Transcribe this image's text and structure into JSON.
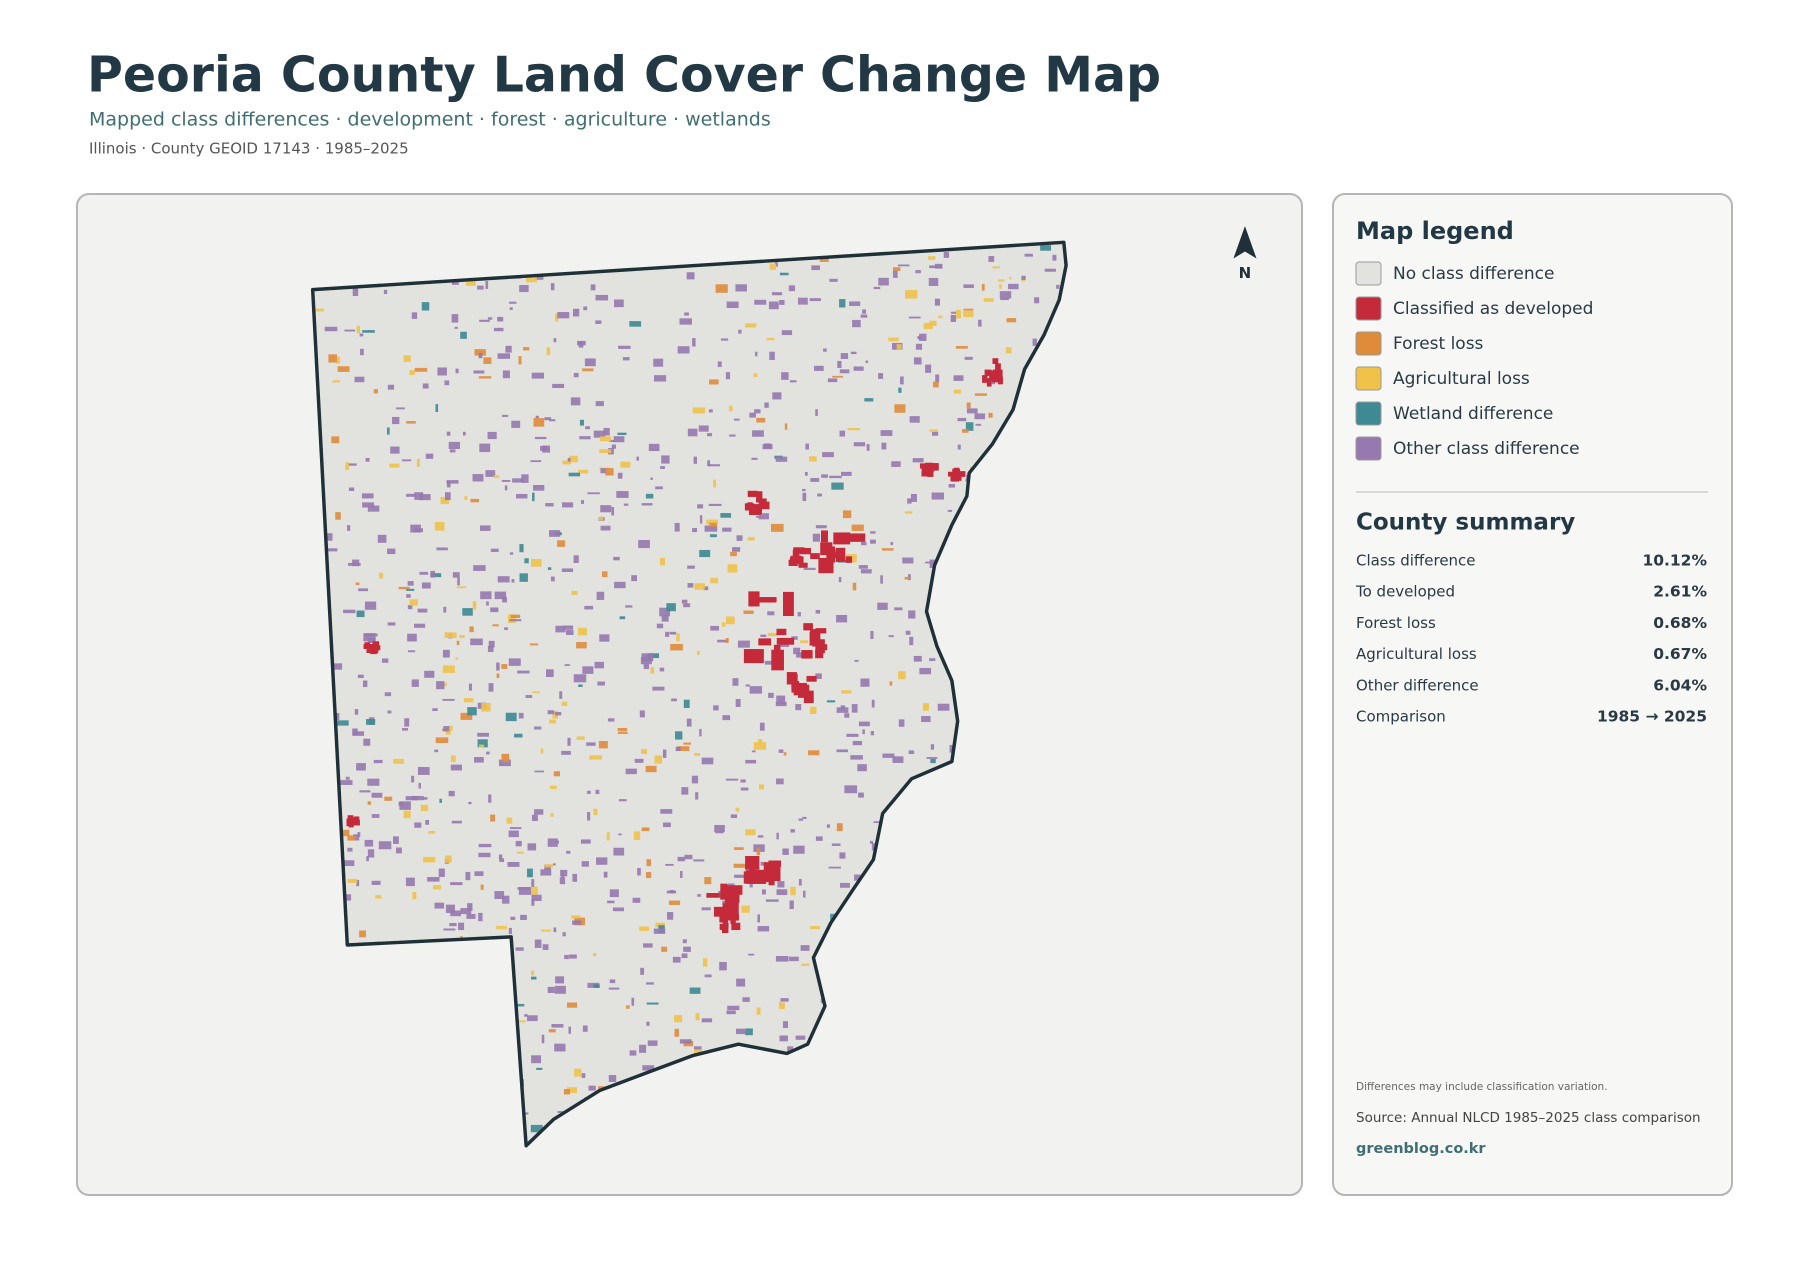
{
  "header": {
    "title": "Peoria County Land Cover Change Map",
    "subtitle": "Mapped class differences · development · forest · agriculture · wetlands",
    "meta": "Illinois · County GEOID 17143 · 1985–2025"
  },
  "map": {
    "north_label": "N"
  },
  "legend": {
    "title": "Map legend",
    "items": [
      {
        "label": "No class difference",
        "color": "#e2e2df"
      },
      {
        "label": "Classified as developed",
        "color": "#c42a3a"
      },
      {
        "label": "Forest loss",
        "color": "#e08b3a"
      },
      {
        "label": "Agricultural loss",
        "color": "#f0c24a"
      },
      {
        "label": "Wetland difference",
        "color": "#3d8a94"
      },
      {
        "label": "Other class difference",
        "color": "#9679ae"
      }
    ]
  },
  "summary": {
    "title": "County summary",
    "rows": [
      [
        "Class difference",
        "10.12%"
      ],
      [
        "To developed",
        "2.61%"
      ],
      [
        "Forest loss",
        "0.68%"
      ],
      [
        "Agricultural loss",
        "0.67%"
      ],
      [
        "Other difference",
        "6.04%"
      ],
      [
        "Comparison",
        "1985 → 2025"
      ]
    ]
  },
  "notes": {
    "caveat": "Differences may include classification variation.",
    "source": "Source: Annual NLCD 1985–2025 class comparison",
    "site": "greenblog.co.kr"
  }
}
